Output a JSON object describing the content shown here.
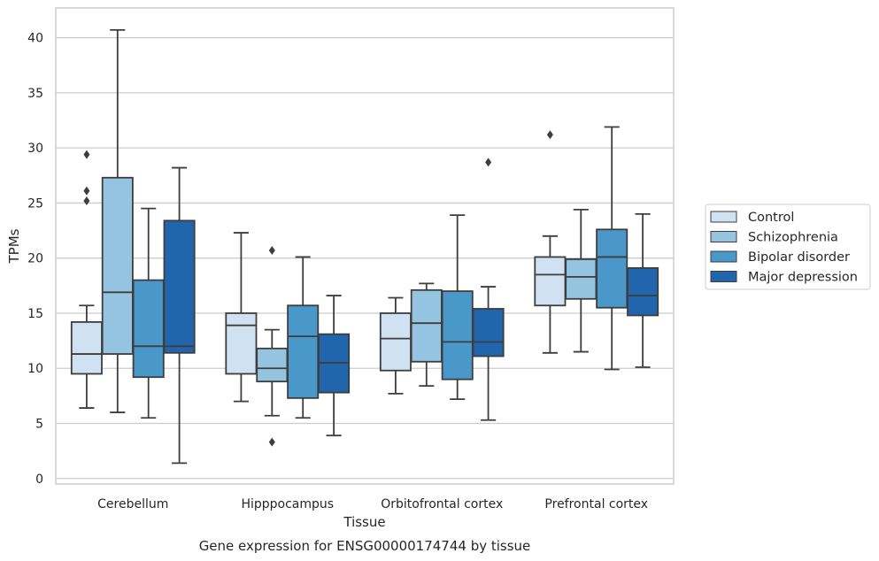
{
  "chart_data": {
    "type": "box",
    "title": "",
    "caption": "Gene expression for ENSG00000174744 by tissue",
    "xlabel": "Tissue",
    "ylabel": "TPMs",
    "ylim": [
      -0.5,
      42.7
    ],
    "yticks": [
      0,
      5,
      10,
      15,
      20,
      25,
      30,
      35,
      40
    ],
    "grid": "horizontal",
    "legend_position": "right",
    "categories": [
      "Cerebellum",
      "Hipppocampus",
      "Orbitofrontal cortex",
      "Prefrontal cortex"
    ],
    "series": [
      {
        "name": "Control",
        "color": "#d0e1f2",
        "boxes": [
          {
            "whislo": 6.4,
            "q1": 9.5,
            "med": 11.3,
            "q3": 14.2,
            "whishi": 15.7,
            "fliers": [
              25.2,
              26.1,
              29.4
            ]
          },
          {
            "whislo": 7.0,
            "q1": 9.5,
            "med": 13.9,
            "q3": 15.0,
            "whishi": 22.3,
            "fliers": []
          },
          {
            "whislo": 7.7,
            "q1": 9.8,
            "med": 12.7,
            "q3": 15.0,
            "whishi": 16.4,
            "fliers": []
          },
          {
            "whislo": 11.4,
            "q1": 15.7,
            "med": 18.5,
            "q3": 20.1,
            "whishi": 22.0,
            "fliers": [
              31.2
            ]
          }
        ]
      },
      {
        "name": "Schizophrenia",
        "color": "#94c4df",
        "boxes": [
          {
            "whislo": 6.0,
            "q1": 11.3,
            "med": 16.9,
            "q3": 27.3,
            "whishi": 40.7,
            "fliers": []
          },
          {
            "whislo": 5.7,
            "q1": 8.8,
            "med": 10.0,
            "q3": 11.8,
            "whishi": 13.5,
            "fliers": [
              3.3,
              20.7
            ]
          },
          {
            "whislo": 8.4,
            "q1": 10.6,
            "med": 14.1,
            "q3": 17.1,
            "whishi": 17.7,
            "fliers": []
          },
          {
            "whislo": 11.5,
            "q1": 16.3,
            "med": 18.3,
            "q3": 19.9,
            "whishi": 24.4,
            "fliers": []
          }
        ]
      },
      {
        "name": "Bipolar disorder",
        "color": "#4a98c9",
        "boxes": [
          {
            "whislo": 5.5,
            "q1": 9.2,
            "med": 12.0,
            "q3": 18.0,
            "whishi": 24.5,
            "fliers": []
          },
          {
            "whislo": 5.5,
            "q1": 7.3,
            "med": 12.9,
            "q3": 15.7,
            "whishi": 20.1,
            "fliers": []
          },
          {
            "whislo": 7.2,
            "q1": 9.0,
            "med": 12.4,
            "q3": 17.0,
            "whishi": 23.9,
            "fliers": []
          },
          {
            "whislo": 9.9,
            "q1": 15.5,
            "med": 20.1,
            "q3": 22.6,
            "whishi": 31.9,
            "fliers": []
          }
        ]
      },
      {
        "name": "Major depression",
        "color": "#2166ac",
        "boxes": [
          {
            "whislo": 1.4,
            "q1": 11.4,
            "med": 12.0,
            "q3": 23.4,
            "whishi": 28.2,
            "fliers": []
          },
          {
            "whislo": 3.9,
            "q1": 7.8,
            "med": 10.5,
            "q3": 13.1,
            "whishi": 16.6,
            "fliers": []
          },
          {
            "whislo": 5.3,
            "q1": 11.1,
            "med": 12.4,
            "q3": 15.4,
            "whishi": 17.4,
            "fliers": [
              28.7
            ]
          },
          {
            "whislo": 10.1,
            "q1": 14.8,
            "med": 16.6,
            "q3": 19.1,
            "whishi": 24.0,
            "fliers": []
          }
        ]
      }
    ]
  }
}
